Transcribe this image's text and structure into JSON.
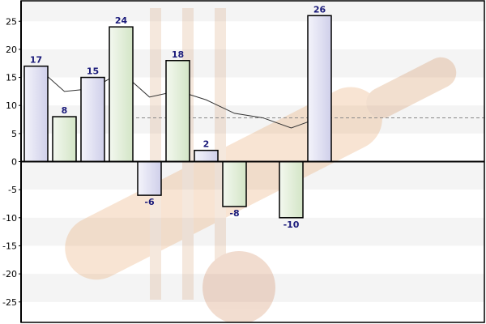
{
  "chart_data": {
    "type": "bar",
    "title": "",
    "xlabel": "",
    "ylabel": "",
    "ylim": [
      -29,
      29
    ],
    "yticks": [
      25,
      20,
      15,
      10,
      5,
      0,
      -5,
      -10,
      -15,
      -20,
      -25
    ],
    "grid": "horizontal bands",
    "values": [
      17,
      8,
      15,
      24,
      -6,
      18,
      2,
      -8,
      null,
      -10,
      26
    ],
    "data_labels": [
      "17",
      "8",
      "15",
      "24",
      "-6",
      "18",
      "2",
      "-8",
      "",
      "-10",
      "26"
    ],
    "line_series": {
      "type": "line",
      "values": [
        17,
        12.5,
        13,
        16,
        11.5,
        12.6,
        11,
        8.6,
        7.8,
        6,
        7.8
      ]
    },
    "reference_line": 7.8
  },
  "colors": {
    "bar_odd": "#d9d9ef",
    "bar_even": "#deebd6",
    "bar_stroke": "#000000",
    "label": "#1a1a7a",
    "band": "#f4f4f4",
    "trend": "#333333",
    "reference": "#888888",
    "watermark": "#e9a76a"
  }
}
